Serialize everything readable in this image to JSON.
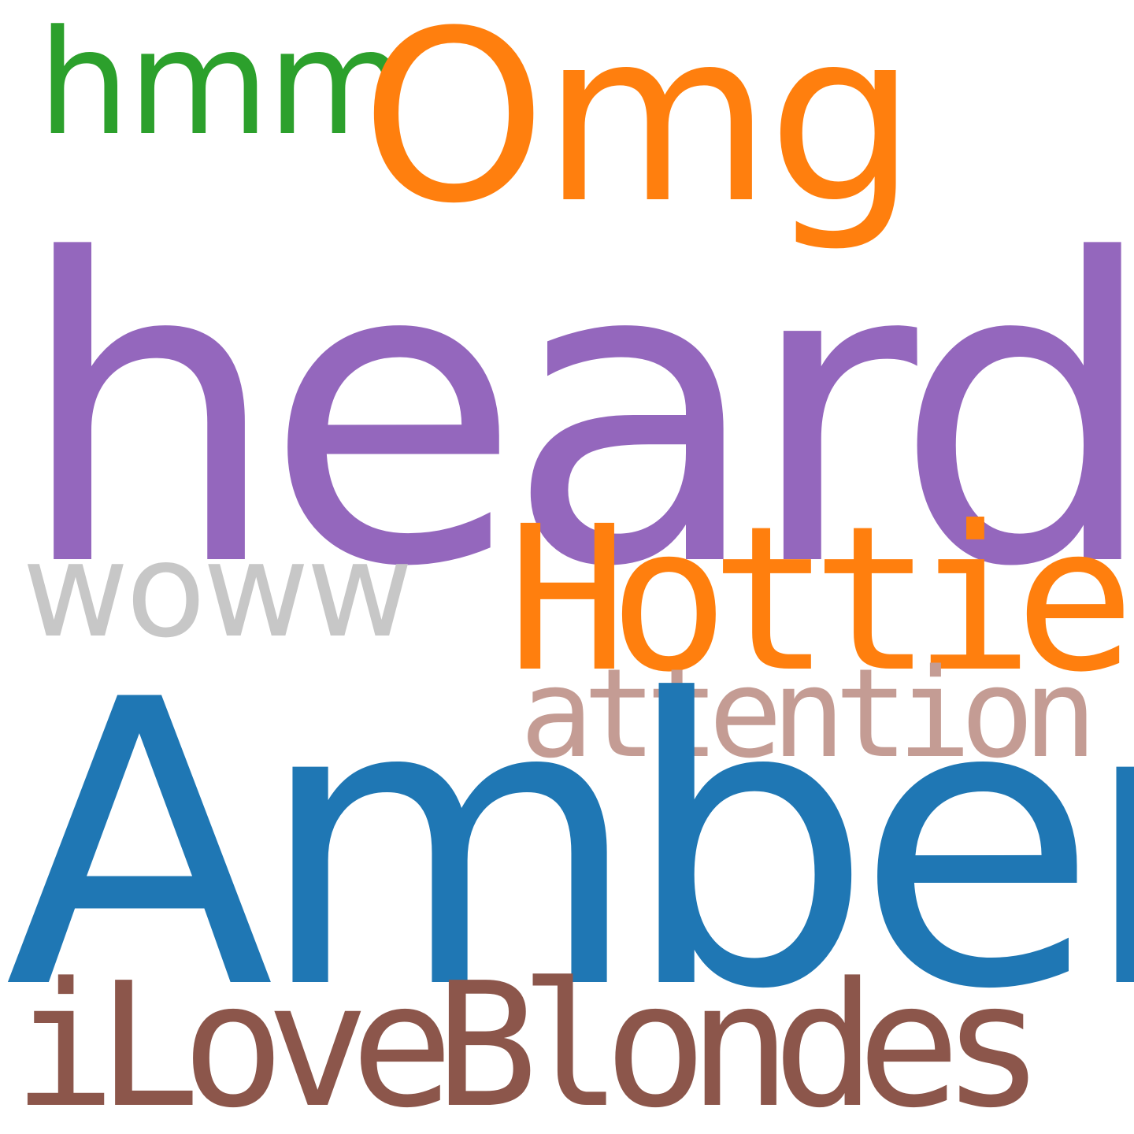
{
  "words": [
    {
      "text": "hmm",
      "color": "#2ca02c"
    },
    {
      "text": "Omg",
      "color": "#ff7f0e"
    },
    {
      "text": "heard",
      "color": "#9467bd"
    },
    {
      "text": "woww",
      "color": "#c7c7c7"
    },
    {
      "text": "Hottie",
      "color": "#ff7f0e"
    },
    {
      "text": "attention",
      "color": "#c49c94"
    },
    {
      "text": "Amber",
      "color": "#1f77b4"
    },
    {
      "text": "iLoveBlondes",
      "color": "#8c564b"
    }
  ]
}
